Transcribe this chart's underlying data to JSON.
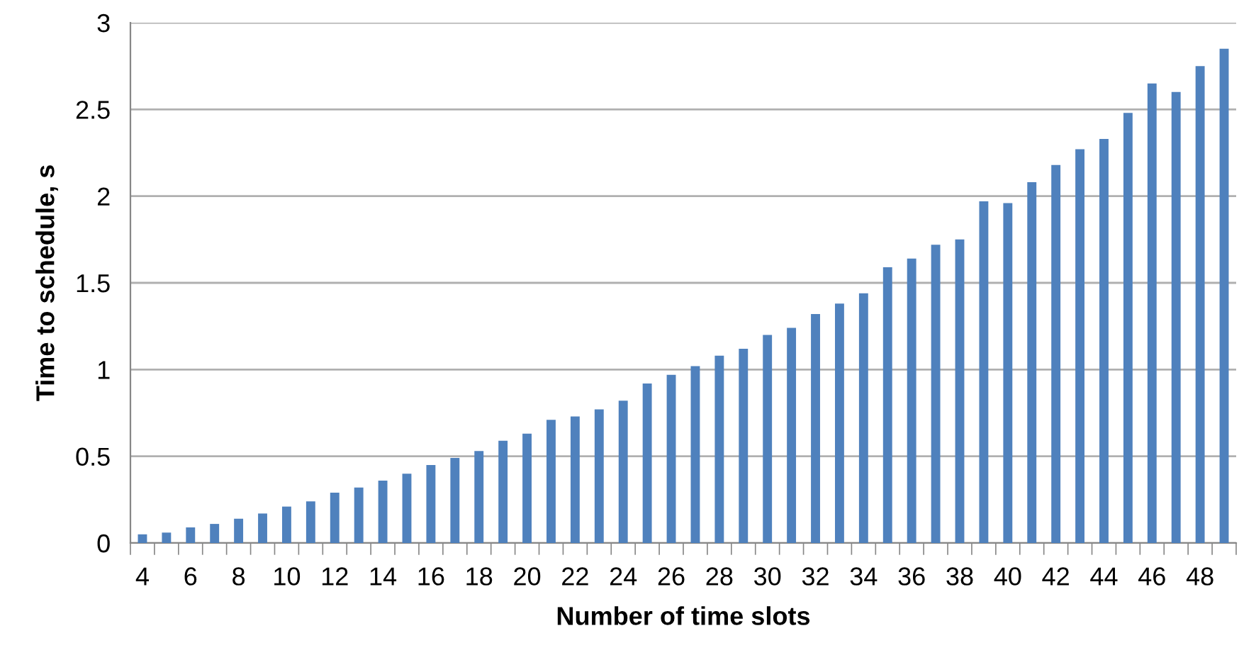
{
  "chart_data": {
    "type": "bar",
    "xlabel": "Number of time slots",
    "ylabel": "Time to schedule, s",
    "categories": [
      "4",
      null,
      "6",
      null,
      "8",
      null,
      "10",
      null,
      "12",
      null,
      "14",
      null,
      "16",
      null,
      "18",
      null,
      "20",
      null,
      "22",
      null,
      "24",
      null,
      "26",
      null,
      "28",
      null,
      "30",
      null,
      "32",
      null,
      "34",
      null,
      "36",
      null,
      "38",
      null,
      "40",
      null,
      "42",
      null,
      "44",
      null,
      "46",
      null,
      "48",
      null
    ],
    "values": [
      0.05,
      0.06,
      0.09,
      0.11,
      0.14,
      0.17,
      0.21,
      0.24,
      0.29,
      0.32,
      0.36,
      0.4,
      0.45,
      0.49,
      0.53,
      0.59,
      0.63,
      0.71,
      0.73,
      0.77,
      0.82,
      0.92,
      0.97,
      1.02,
      1.08,
      1.12,
      1.2,
      1.24,
      1.32,
      1.38,
      1.44,
      1.59,
      1.64,
      1.72,
      1.75,
      1.97,
      1.96,
      2.08,
      2.18,
      2.27,
      2.33,
      2.48,
      2.65,
      2.6,
      2.75,
      2.85
    ],
    "color": "#4f81bd",
    "ylim": [
      0,
      3
    ],
    "yticks": [
      0,
      0.5,
      1,
      1.5,
      2,
      2.5,
      3
    ],
    "grid": "y",
    "legend": false
  }
}
